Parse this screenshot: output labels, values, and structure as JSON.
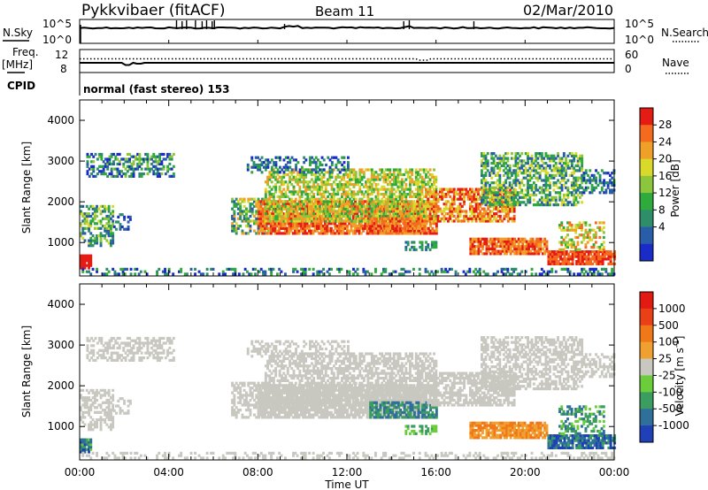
{
  "header": {
    "station": "Pykkvibaer (fitACF)",
    "beam": "Beam 11",
    "date": "02/Mar/2010"
  },
  "top_panel": {
    "left_label": "N.Sky",
    "right_label": "N.Search",
    "left_ticks": [
      "10^5",
      "10^0"
    ],
    "right_ticks": [
      "10^5",
      "10^0"
    ]
  },
  "freq_panel": {
    "left_label": "Freq.",
    "left_unit": "[MHz]",
    "right_label": "Nave",
    "left_ticks": [
      "12",
      "8"
    ],
    "right_ticks": [
      "60",
      "0"
    ]
  },
  "cpid": {
    "label": "CPID",
    "value": "normal (fast stereo) 153"
  },
  "chart_data": [
    {
      "type": "heatmap",
      "title": "",
      "quantity": "Power",
      "ylabel": "Slant Range [km]",
      "xlabel": "Time UT",
      "x_ticks": [
        "00:00",
        "04:00",
        "08:00",
        "12:00",
        "16:00",
        "20:00",
        "00:00"
      ],
      "ylim": [
        180,
        4500
      ],
      "y_ticks": [
        1000,
        2000,
        3000,
        4000
      ],
      "colorbar": {
        "label": "Power [dB]",
        "range": [
          0,
          32
        ],
        "ticks": [
          "4",
          "8",
          "12",
          "16",
          "20",
          "24",
          "28"
        ],
        "colors": [
          "#1a2cc8",
          "#2a5da8",
          "#2e8e6a",
          "#2faa3c",
          "#8cc63c",
          "#d9d92c",
          "#f0a028",
          "#f46a1e",
          "#e51c14"
        ]
      }
    },
    {
      "type": "heatmap",
      "title": "",
      "quantity": "Velocity",
      "ylabel": "Slant Range [km]",
      "xlabel": "Time UT",
      "x_ticks": [
        "00:00",
        "04:00",
        "08:00",
        "12:00",
        "16:00",
        "20:00",
        "00:00"
      ],
      "ylim": [
        180,
        4500
      ],
      "y_ticks": [
        1000,
        2000,
        3000,
        4000
      ],
      "colorbar": {
        "label_main": "Velocity [m s",
        "label_sup": "-1",
        "label_end": "]",
        "ticks": [
          "1000",
          "500",
          "100",
          "25",
          "-25",
          "-100",
          "-500",
          "-1000"
        ],
        "colors": [
          "#2040b8",
          "#2f6f9a",
          "#3b9e60",
          "#6ccd3c",
          "#c8c8c0",
          "#f0a030",
          "#f07818",
          "#ea4018",
          "#e31a12"
        ]
      }
    }
  ],
  "scatter_regions": {
    "power_colors": [
      "#1a2cc8",
      "#2a5da8",
      "#2e8e6a",
      "#2faa3c",
      "#8cc63c",
      "#d9d92c",
      "#f0a028",
      "#f46a1e",
      "#e51c14"
    ],
    "velocity_colors": [
      "#2040b8",
      "#2f6f9a",
      "#3b9e60",
      "#6ccd3c",
      "#c8c8c0",
      "#f0a030",
      "#f07818",
      "#ea4018",
      "#e31a12"
    ]
  }
}
